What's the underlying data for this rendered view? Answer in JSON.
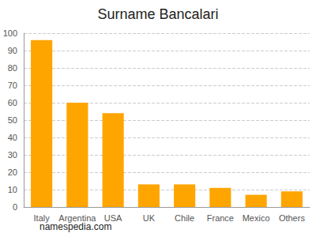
{
  "chart_data": {
    "type": "bar",
    "title": "Surname Bancalari",
    "categories": [
      "Italy",
      "Argentina",
      "USA",
      "UK",
      "Chile",
      "France",
      "Mexico",
      "Others"
    ],
    "values": [
      96,
      60,
      54,
      13,
      13,
      11,
      7,
      9
    ],
    "color": "#ffa500",
    "ylim": [
      0,
      100
    ],
    "yticks": [
      0,
      10,
      20,
      30,
      40,
      50,
      60,
      70,
      80,
      90,
      100
    ],
    "grid": true,
    "annotations": [
      "namespedia.com"
    ]
  }
}
